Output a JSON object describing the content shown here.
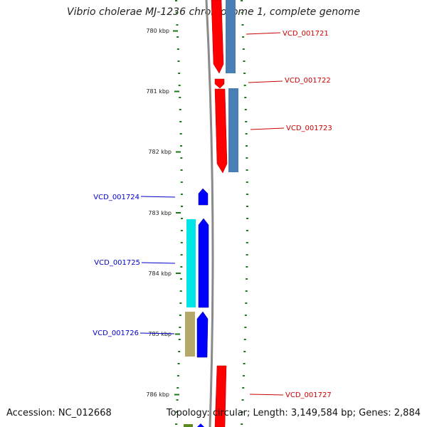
{
  "title": "Vibrio cholerae MJ-1236 chromosome 1, complete genome",
  "footer": {
    "accession": "Accession: NC_012668",
    "summary": "Topology: circular; Length: 3,149,584 bp; Genes: 2,884"
  },
  "ruler": {
    "unit": "kbp",
    "ticks": [
      {
        "label": "780 kbp"
      },
      {
        "label": "781 kbp"
      },
      {
        "label": "782 kbp"
      },
      {
        "label": "783 kbp"
      },
      {
        "label": "784 kbp"
      },
      {
        "label": "785 kbp"
      },
      {
        "label": "786 kbp"
      }
    ]
  },
  "colors": {
    "forward_gene": "#ff0000",
    "reverse_gene": "#0000ff",
    "cog_steelblue": "#4a7fb5",
    "cog_cyan": "#00e5e5",
    "cog_khaki": "#b5a86b",
    "cog_green": "#5a8a1e",
    "backbone": "#8a8a8a",
    "tick": "#1a7a1a",
    "forward_label": "#cc0000",
    "reverse_label": "#0000cc"
  },
  "genes": [
    {
      "name": "VCD_001721",
      "strand": "forward"
    },
    {
      "name": "VCD_001722",
      "strand": "forward"
    },
    {
      "name": "VCD_001723",
      "strand": "forward"
    },
    {
      "name": "VCD_001724",
      "strand": "reverse"
    },
    {
      "name": "VCD_001725",
      "strand": "reverse"
    },
    {
      "name": "VCD_001726",
      "strand": "reverse"
    },
    {
      "name": "VCD_001727",
      "strand": "forward"
    }
  ]
}
